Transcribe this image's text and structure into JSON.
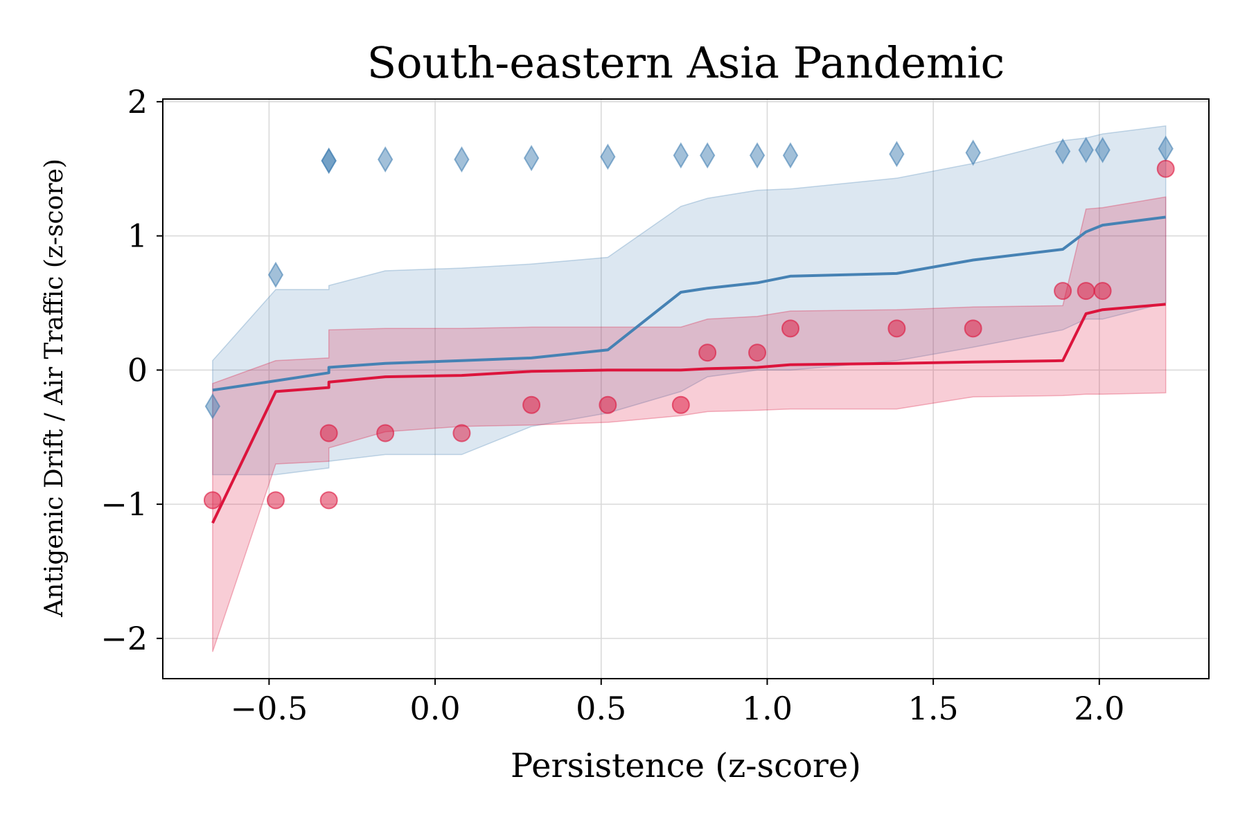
{
  "chart_data": {
    "type": "line",
    "title": "South-eastern Asia Pandemic",
    "xlabel": "Persistence (z-score)",
    "ylabel": "Antigenic Drift / Air Traffic (z-score)",
    "xlim": [
      -0.82,
      2.33
    ],
    "ylim": [
      -2.3,
      2.02
    ],
    "xticks": [
      -0.5,
      0.0,
      0.5,
      1.0,
      1.5,
      2.0
    ],
    "xtick_labels": [
      "−0.5",
      "0.0",
      "0.5",
      "1.0",
      "1.5",
      "2.0"
    ],
    "yticks": [
      -2,
      -1,
      0,
      1,
      2
    ],
    "ytick_labels": [
      "−2",
      "−1",
      "0",
      "1",
      "2"
    ],
    "grid": true,
    "series": [
      {
        "marker": "diamond",
        "color": "#4682b4",
        "x": [
          -0.67,
          -0.48,
          -0.32,
          -0.32,
          -0.15,
          0.08,
          0.29,
          0.52,
          0.74,
          0.82,
          0.97,
          1.07,
          1.39,
          1.62,
          1.89,
          1.96,
          2.01,
          2.2
        ],
        "points": [
          -0.27,
          0.71,
          1.56,
          1.56,
          1.57,
          1.57,
          1.58,
          1.59,
          1.6,
          1.6,
          1.6,
          1.6,
          1.61,
          1.62,
          1.63,
          1.64,
          1.64,
          1.65
        ],
        "line": [
          -0.15,
          -0.08,
          -0.02,
          0.02,
          0.05,
          0.07,
          0.09,
          0.15,
          0.58,
          0.61,
          0.65,
          0.7,
          0.72,
          0.82,
          0.9,
          1.03,
          1.08,
          1.14
        ],
        "band_upper": [
          0.07,
          0.6,
          0.6,
          0.63,
          0.74,
          0.76,
          0.79,
          0.84,
          1.22,
          1.28,
          1.34,
          1.35,
          1.43,
          1.54,
          1.71,
          1.73,
          1.76,
          1.82
        ],
        "band_lower": [
          -0.78,
          -0.78,
          -0.73,
          -0.68,
          -0.63,
          -0.63,
          -0.42,
          -0.32,
          -0.16,
          -0.05,
          0.0,
          0.0,
          0.07,
          0.17,
          0.3,
          0.38,
          0.38,
          0.5
        ]
      },
      {
        "marker": "circle",
        "color": "#dc143c",
        "x": [
          -0.67,
          -0.48,
          -0.32,
          -0.32,
          -0.15,
          0.08,
          0.29,
          0.52,
          0.74,
          0.82,
          0.97,
          1.07,
          1.39,
          1.62,
          1.89,
          1.96,
          2.01,
          2.2
        ],
        "points": [
          -0.97,
          -0.97,
          -0.97,
          -0.47,
          -0.47,
          -0.47,
          -0.26,
          -0.26,
          -0.26,
          0.13,
          0.13,
          0.31,
          0.31,
          0.31,
          0.59,
          0.59,
          0.59,
          1.5
        ],
        "line": [
          -1.14,
          -0.16,
          -0.13,
          -0.09,
          -0.05,
          -0.04,
          -0.01,
          0.0,
          0.0,
          0.01,
          0.02,
          0.04,
          0.05,
          0.06,
          0.07,
          0.42,
          0.45,
          0.49
        ],
        "band_upper": [
          -0.1,
          0.07,
          0.09,
          0.3,
          0.31,
          0.31,
          0.32,
          0.32,
          0.32,
          0.38,
          0.4,
          0.44,
          0.45,
          0.47,
          0.48,
          1.2,
          1.21,
          1.29
        ],
        "band_lower": [
          -2.1,
          -0.7,
          -0.68,
          -0.58,
          -0.46,
          -0.42,
          -0.41,
          -0.39,
          -0.34,
          -0.31,
          -0.3,
          -0.29,
          -0.29,
          -0.2,
          -0.19,
          -0.18,
          -0.18,
          -0.17
        ]
      }
    ]
  }
}
